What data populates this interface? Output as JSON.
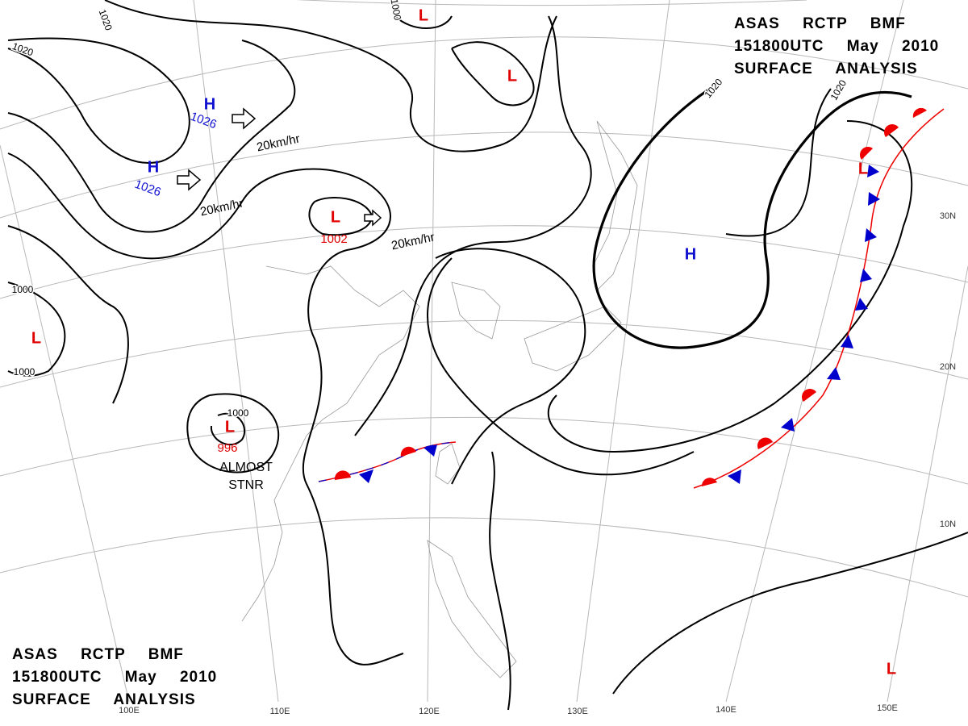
{
  "title_blocks": [
    {
      "lines": [
        "ASAS RCTP BMF",
        "151800UTC May 2010",
        "SURFACE ANALYSIS"
      ]
    },
    {
      "lines": [
        "ASAS RCTP BMF",
        "151800UTC May 2010",
        "SURFACE ANALYSIS"
      ]
    }
  ],
  "pressure_centers": [
    {
      "symbol": "H",
      "value": 1026
    },
    {
      "symbol": "H",
      "value": 1026
    },
    {
      "symbol": "L",
      "value": 1002
    },
    {
      "symbol": "L",
      "value": 996
    },
    {
      "symbol": "H"
    },
    {
      "symbol": "L"
    },
    {
      "symbol": "L"
    },
    {
      "symbol": "L"
    },
    {
      "symbol": "L"
    },
    {
      "symbol": "L"
    }
  ],
  "isobar_labels": [
    1020,
    1020,
    1020,
    1020,
    1000,
    1000,
    1000,
    1000
  ],
  "motion_labels": [
    "20km/hr",
    "20km/hr",
    "20km/hr"
  ],
  "annotations": [
    {
      "lines": [
        "ALMOST",
        "STNR"
      ]
    }
  ],
  "longitude_labels": [
    "100E",
    "110E",
    "120E",
    "130E",
    "140E",
    "150E"
  ],
  "latitude_labels": [
    "30N",
    "20N",
    "10N"
  ]
}
